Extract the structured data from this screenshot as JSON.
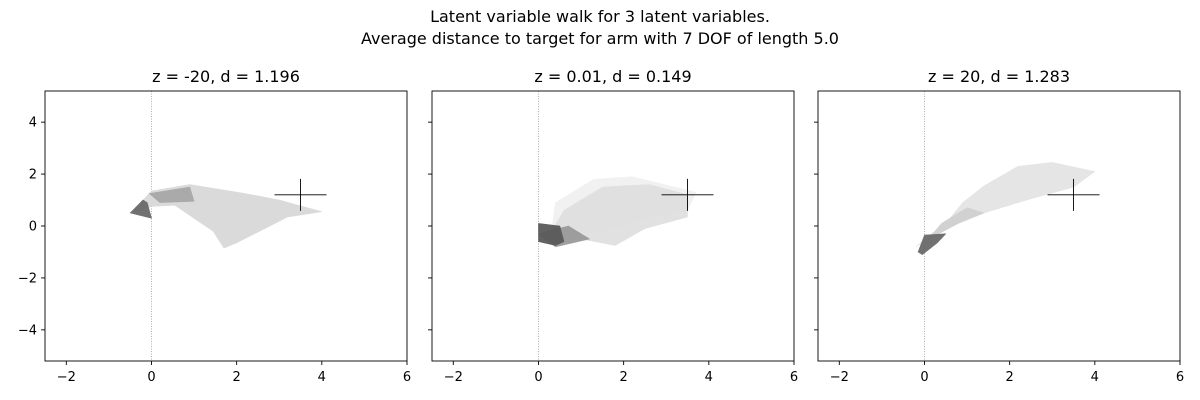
{
  "figure": {
    "title_line1": "Latent variable walk for 3 latent variables.",
    "title_line2": "Average distance to target for arm with 7 DOF of length 5.0"
  },
  "chart_data": [
    {
      "type": "arm-configuration",
      "title": "z = -20, d = 1.196",
      "xlim": [
        -2.5,
        6
      ],
      "ylim": [
        -5.2,
        5.2
      ],
      "x_ticks": [
        -2,
        0,
        2,
        4,
        6
      ],
      "y_ticks": [
        -4,
        -2,
        0,
        2,
        4
      ],
      "show_y_tick_labels": true,
      "reference_line_x": 0,
      "target": [
        3.5,
        1.2
      ],
      "arm_shapes": [
        {
          "color": "#d9d9d9",
          "points": [
            [
              -0.45,
              0.55
            ],
            [
              0.0,
              1.35
            ],
            [
              0.9,
              1.6
            ],
            [
              2.2,
              1.25
            ],
            [
              3.0,
              1.0
            ],
            [
              4.0,
              0.55
            ],
            [
              3.2,
              0.35
            ],
            [
              2.0,
              -0.65
            ],
            [
              1.7,
              -0.85
            ],
            [
              1.45,
              -0.2
            ],
            [
              0.55,
              0.8
            ],
            [
              0.0,
              0.75
            ],
            [
              -0.3,
              0.6
            ]
          ]
        },
        {
          "color": "#a8a8a8",
          "points": [
            [
              -0.05,
              1.25
            ],
            [
              0.9,
              1.5
            ],
            [
              1.0,
              0.95
            ],
            [
              0.2,
              0.9
            ]
          ]
        },
        {
          "color": "#6a6a6a",
          "points": [
            [
              -0.5,
              0.5
            ],
            [
              0.0,
              0.3
            ],
            [
              -0.1,
              0.9
            ],
            [
              -0.2,
              1.0
            ]
          ]
        }
      ]
    },
    {
      "type": "arm-configuration",
      "title": "z = 0.01, d = 0.149",
      "xlim": [
        -2.5,
        6
      ],
      "ylim": [
        -5.2,
        5.2
      ],
      "x_ticks": [
        -2,
        0,
        2,
        4,
        6
      ],
      "y_ticks": [
        -4,
        -2,
        0,
        2,
        4
      ],
      "show_y_tick_labels": false,
      "reference_line_x": 0,
      "target": [
        3.5,
        1.2
      ],
      "arm_shapes": [
        {
          "color": "#f1f1f1",
          "points": [
            [
              0.3,
              -0.3
            ],
            [
              0.4,
              0.9
            ],
            [
              1.3,
              1.8
            ],
            [
              2.2,
              1.9
            ],
            [
              3.2,
              1.5
            ],
            [
              3.7,
              1.3
            ],
            [
              3.5,
              0.6
            ],
            [
              2.8,
              0.4
            ],
            [
              1.5,
              -0.2
            ],
            [
              0.8,
              -0.3
            ]
          ]
        },
        {
          "color": "#e0e0e0",
          "points": [
            [
              0.2,
              -0.5
            ],
            [
              0.6,
              0.6
            ],
            [
              1.5,
              1.5
            ],
            [
              2.6,
              1.6
            ],
            [
              3.5,
              1.2
            ],
            [
              3.5,
              0.35
            ],
            [
              2.5,
              -0.1
            ],
            [
              1.8,
              -0.75
            ],
            [
              1.0,
              -0.5
            ]
          ]
        },
        {
          "color": "#9a9a9a",
          "points": [
            [
              0.0,
              -0.3
            ],
            [
              0.7,
              0.0
            ],
            [
              1.2,
              -0.5
            ],
            [
              0.4,
              -0.8
            ]
          ]
        },
        {
          "color": "#5a5a5a",
          "points": [
            [
              0.0,
              0.1
            ],
            [
              0.5,
              0.0
            ],
            [
              0.6,
              -0.6
            ],
            [
              0.4,
              -0.75
            ],
            [
              0.0,
              -0.6
            ]
          ]
        }
      ]
    },
    {
      "type": "arm-configuration",
      "title": "z = 20, d = 1.283",
      "xlim": [
        -2.5,
        6
      ],
      "ylim": [
        -5.2,
        5.2
      ],
      "x_ticks": [
        -2,
        0,
        2,
        4,
        6
      ],
      "y_ticks": [
        -4,
        -2,
        0,
        2,
        4
      ],
      "show_y_tick_labels": false,
      "reference_line_x": 0,
      "target": [
        3.5,
        1.2
      ],
      "arm_shapes": [
        {
          "color": "#e4e4e4",
          "points": [
            [
              -0.2,
              -0.8
            ],
            [
              0.3,
              -0.3
            ],
            [
              1.0,
              0.3
            ],
            [
              1.6,
              0.6
            ],
            [
              2.4,
              1.0
            ],
            [
              3.5,
              1.5
            ],
            [
              4.0,
              2.1
            ],
            [
              3.0,
              2.45
            ],
            [
              2.2,
              2.3
            ],
            [
              1.4,
              1.55
            ],
            [
              0.9,
              0.9
            ],
            [
              0.6,
              0.3
            ]
          ]
        },
        {
          "color": "#d0d0d0",
          "points": [
            [
              0.1,
              -0.5
            ],
            [
              0.8,
              0.1
            ],
            [
              1.4,
              0.5
            ],
            [
              1.0,
              0.7
            ],
            [
              0.4,
              0.1
            ]
          ]
        },
        {
          "color": "#6a6a6a",
          "points": [
            [
              -0.15,
              -1.0
            ],
            [
              0.0,
              -0.35
            ],
            [
              0.5,
              -0.3
            ],
            [
              0.3,
              -0.65
            ],
            [
              -0.05,
              -1.1
            ]
          ]
        }
      ]
    }
  ]
}
